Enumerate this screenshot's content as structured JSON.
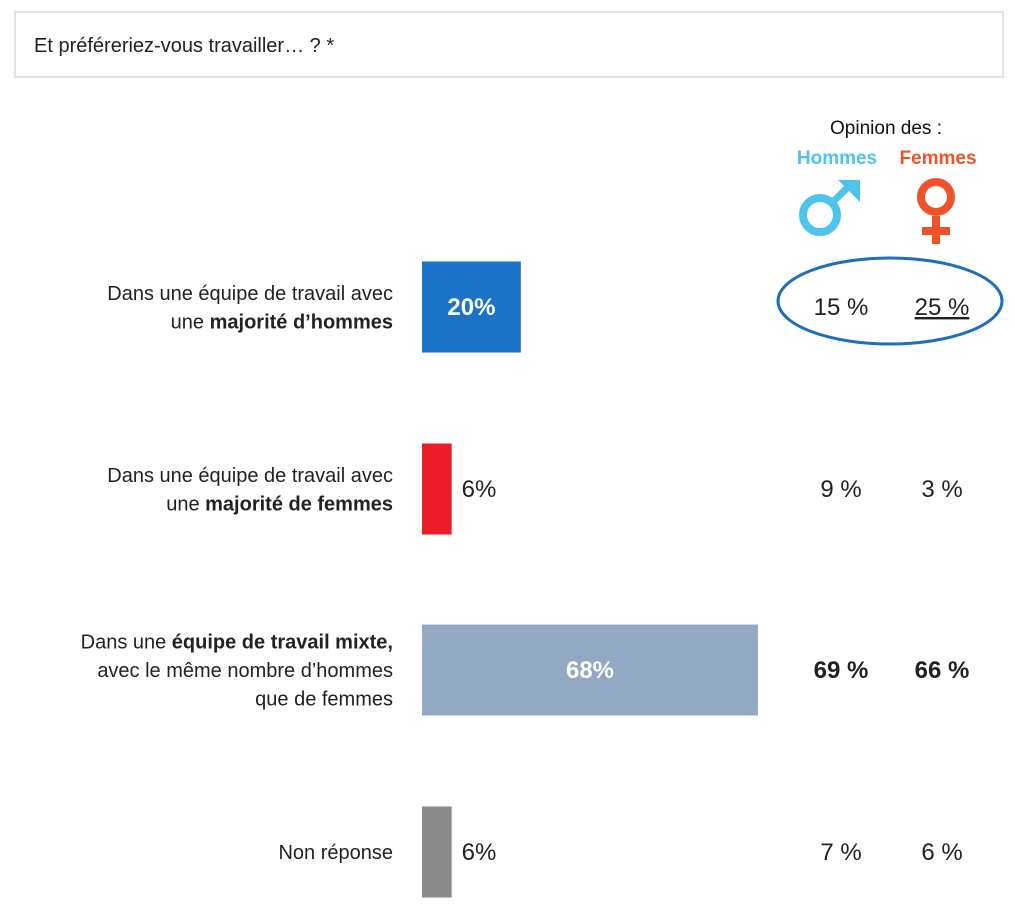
{
  "question": "Et préféreriez-vous travailler… ? *",
  "opinion_header": "Opinion des :",
  "colors": {
    "hommes": "#4ec3ec",
    "femmes": "#f0532a",
    "ellipse": "#1e6fb8",
    "inner_label": "#ffffff",
    "outer_label": "#222222"
  },
  "chart_data": {
    "type": "bar",
    "orientation": "horizontal",
    "xlim": [
      0,
      100
    ],
    "categories": [
      "Dans une équipe de travail avec une majorité d’hommes",
      "Dans une équipe de travail avec une majorité de femmes",
      "Dans une équipe de travail mixte, avec le même nombre d’hommes que de femmes",
      "Non réponse"
    ],
    "rows": [
      {
        "label_lines": [
          [
            {
              "t": "Dans une équipe de travail avec",
              "b": false
            }
          ],
          [
            {
              "t": "une ",
              "b": false
            },
            {
              "t": "majorité d’hommes",
              "b": true
            }
          ]
        ],
        "value": 20,
        "value_label": "20%",
        "color": "#1a73c9",
        "hommes": "15 %",
        "femmes": "25 %",
        "bold": false,
        "femmes_underline": true,
        "highlight": true
      },
      {
        "label_lines": [
          [
            {
              "t": "Dans une équipe de travail avec",
              "b": false
            }
          ],
          [
            {
              "t": "une ",
              "b": false
            },
            {
              "t": "majorité de femmes",
              "b": true
            }
          ]
        ],
        "value": 6,
        "value_label": "6%",
        "color": "#ed1c2a",
        "hommes": "9 %",
        "femmes": "3 %",
        "bold": false,
        "femmes_underline": false,
        "highlight": false
      },
      {
        "label_lines": [
          [
            {
              "t": "Dans une ",
              "b": false
            },
            {
              "t": "équipe de travail mixte,",
              "b": true
            }
          ],
          [
            {
              "t": "avec le même nombre d’hommes",
              "b": false
            }
          ],
          [
            {
              "t": "que de femmes",
              "b": false
            }
          ]
        ],
        "value": 68,
        "value_label": "68%",
        "color": "#93a8c2",
        "hommes": "69 %",
        "femmes": "66 %",
        "bold": true,
        "femmes_underline": false,
        "highlight": false
      },
      {
        "label_lines": [
          [
            {
              "t": "Non réponse",
              "b": false
            }
          ]
        ],
        "value": 6,
        "value_label": "6%",
        "color": "#8a8a8a",
        "hommes": "7 %",
        "femmes": "6 %",
        "bold": false,
        "femmes_underline": false,
        "highlight": false
      }
    ],
    "series": [
      {
        "name": "Hommes",
        "values": [
          15,
          9,
          69,
          7
        ]
      },
      {
        "name": "Femmes",
        "values": [
          25,
          3,
          66,
          6
        ]
      }
    ]
  }
}
